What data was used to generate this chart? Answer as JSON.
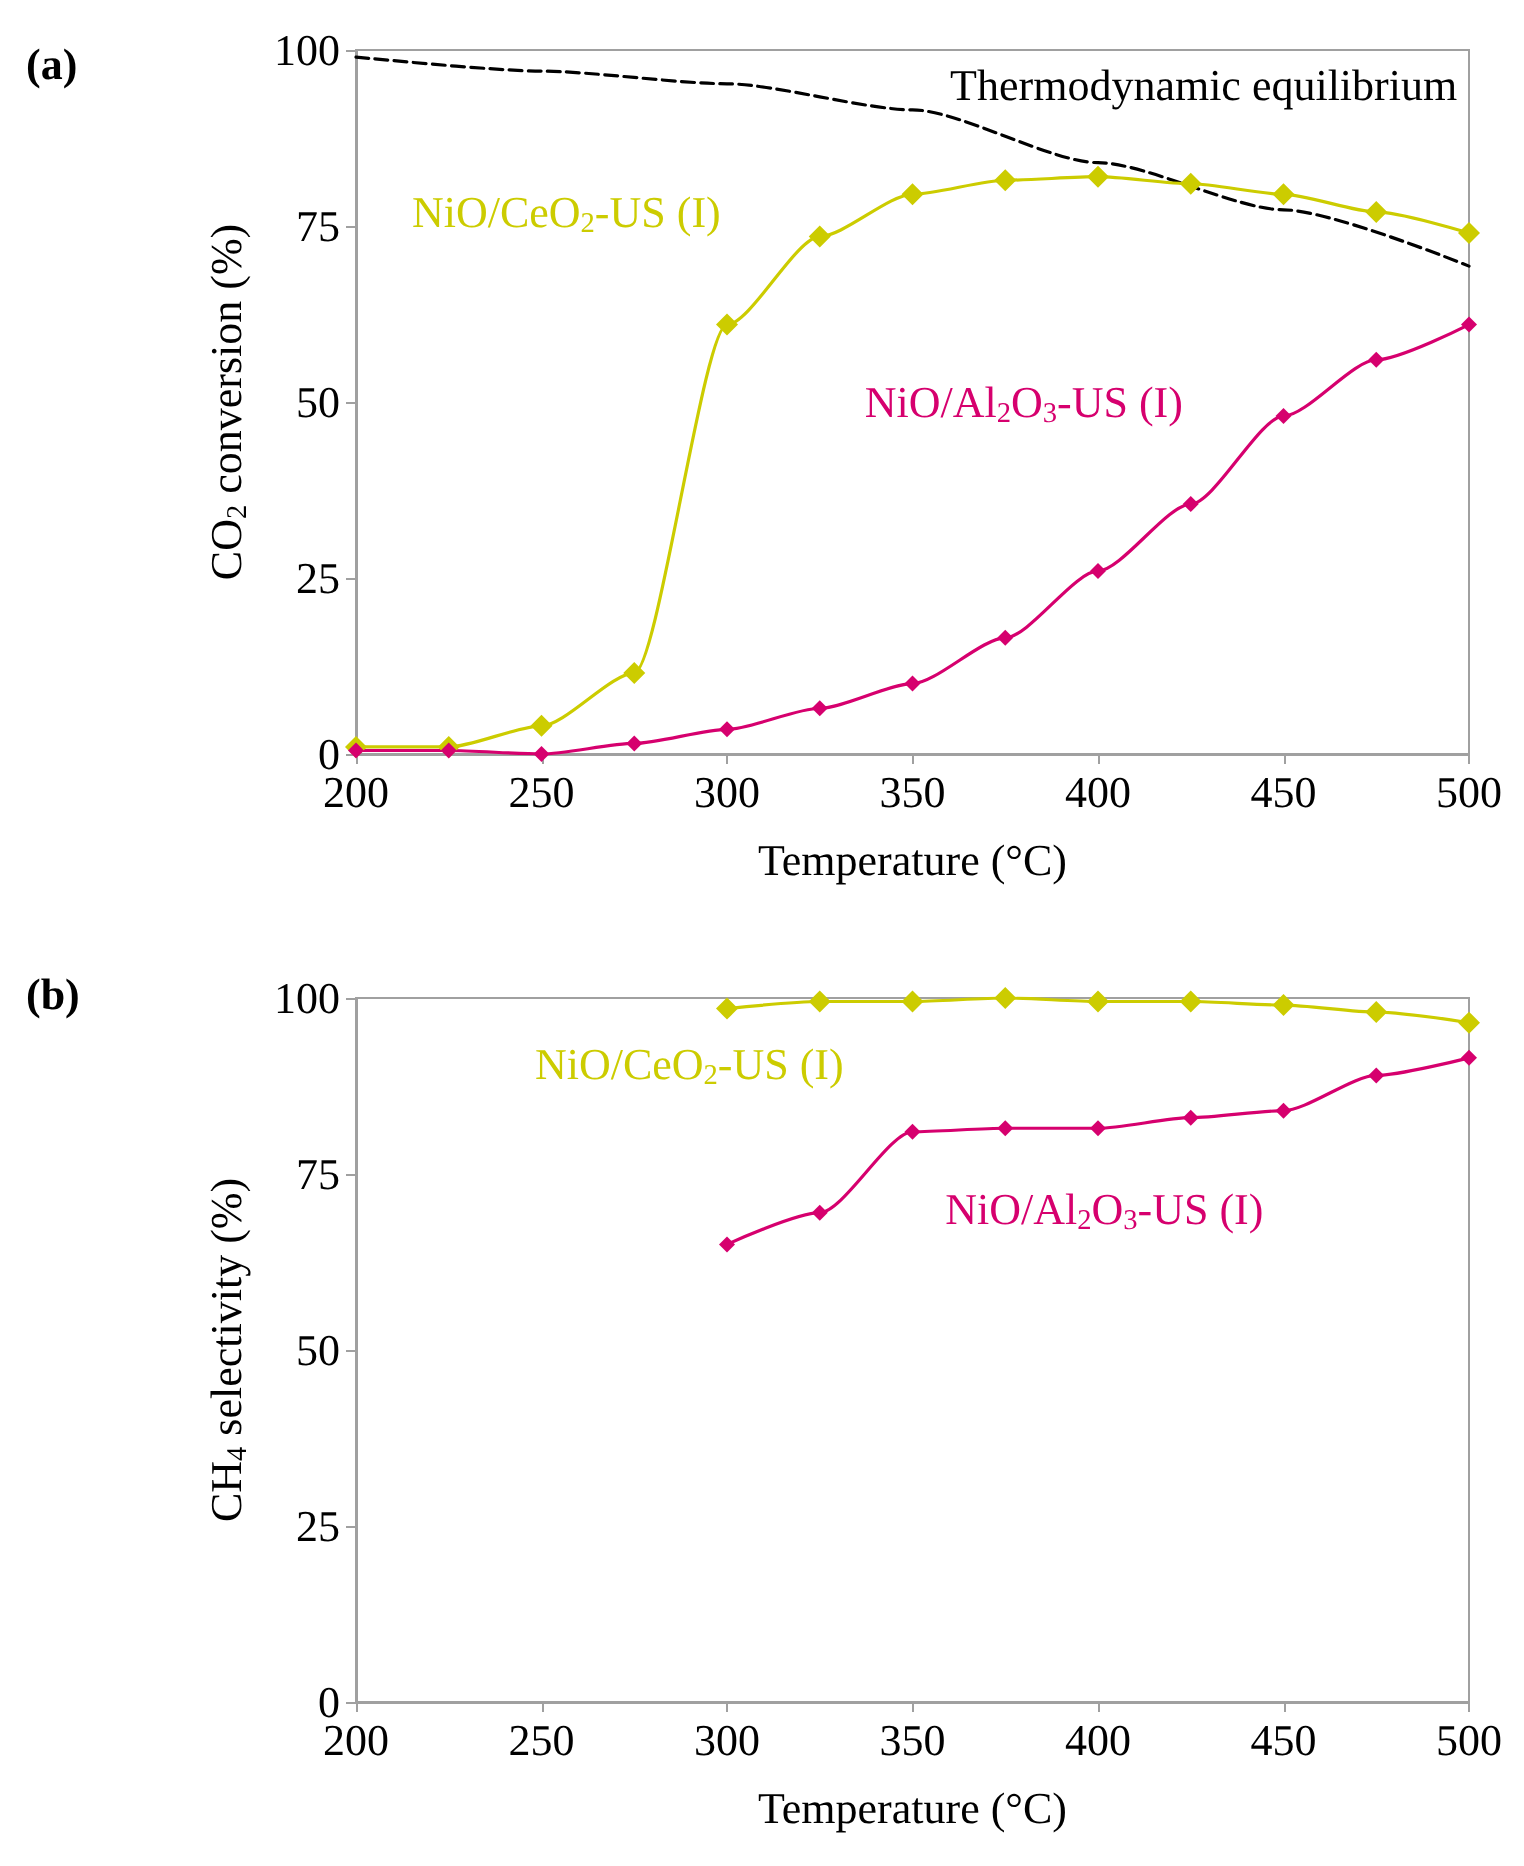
{
  "chart_data": [
    {
      "type": "line",
      "title": "(a)",
      "xlabel": "Temperature (°C)",
      "ylabel": "CO$_{2}$ conversion (%)",
      "x": [
        200,
        225,
        250,
        275,
        300,
        325,
        350,
        375,
        400,
        425,
        450,
        475,
        500
      ],
      "xlim": [
        200,
        500
      ],
      "xticks": [
        200,
        250,
        300,
        350,
        400,
        450,
        500
      ],
      "ylim": [
        0,
        100
      ],
      "yticks": [
        0,
        25,
        50,
        75,
        100
      ],
      "marker": "diamond",
      "grid": false,
      "series": [
        {
          "name": "Thermodynamic equilibrium",
          "color": "#000000",
          "marker": "none",
          "line_style": "dashed",
          "x": [
            200,
            250,
            300,
            350,
            400,
            450,
            500
          ],
          "values": [
            99,
            97,
            95.2,
            91.5,
            84,
            77.3,
            69.3
          ]
        },
        {
          "name": "NiO/CeO$_{2}$-US (I)",
          "color": "#cccc00",
          "values": [
            1,
            1,
            4,
            11.5,
            61,
            73.5,
            79.5,
            81.5,
            82,
            81,
            79.5,
            77,
            74
          ]
        },
        {
          "name": "NiO/Al$_{2}$O$_{3}$-US (I)",
          "color": "#d6006e",
          "values": [
            0.5,
            0.5,
            0,
            1.5,
            3.5,
            6.5,
            10,
            16.5,
            26,
            35.5,
            48,
            56,
            61
          ]
        }
      ]
    },
    {
      "type": "line",
      "title": "(b)",
      "xlabel": "Temperature (°C)",
      "ylabel": "CH$_{4}$ selectivity (%)",
      "x": [
        300,
        325,
        350,
        375,
        400,
        425,
        450,
        475,
        500
      ],
      "xlim": [
        200,
        500
      ],
      "xticks": [
        200,
        250,
        300,
        350,
        400,
        450,
        500
      ],
      "ylim": [
        0,
        100
      ],
      "yticks": [
        0,
        25,
        50,
        75,
        100
      ],
      "marker": "diamond",
      "grid": false,
      "series": [
        {
          "name": "NiO/CeO$_{2}$-US (I)",
          "color": "#cccc00",
          "values": [
            98.5,
            99.5,
            99.5,
            100,
            99.5,
            99.5,
            99,
            98,
            96.5
          ]
        },
        {
          "name": "NiO/Al$_{2}$O$_{3}$-US (I)",
          "color": "#d6006e",
          "values": [
            65,
            69.5,
            81,
            81.5,
            81.5,
            83,
            84,
            89,
            91.5
          ]
        }
      ]
    }
  ]
}
